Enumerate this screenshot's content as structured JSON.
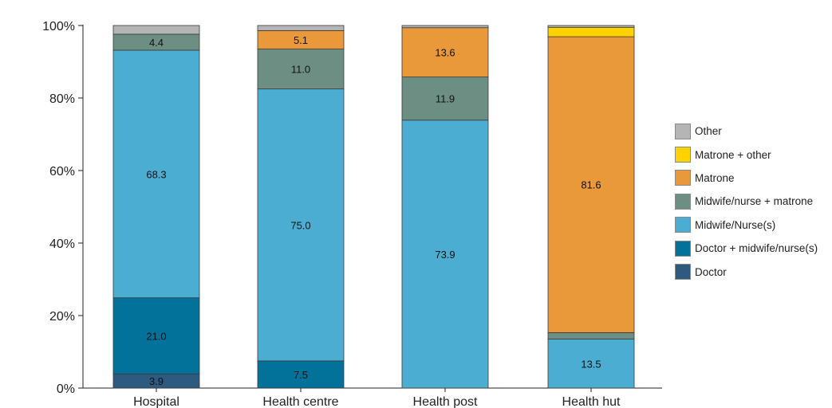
{
  "chart_data": {
    "type": "bar",
    "stacked": true,
    "categories": [
      "Hospital",
      "Health centre",
      "Health post",
      "Health hut"
    ],
    "yticks": [
      "0%",
      "20%",
      "40%",
      "60%",
      "80%",
      "100%"
    ],
    "ylim": [
      0,
      100
    ],
    "grid": false,
    "legend_position": "right",
    "series": [
      {
        "name": "Doctor",
        "color": "#2f5a80",
        "values": [
          3.9,
          0,
          0,
          0
        ],
        "labels": [
          "3.9",
          "",
          "",
          ""
        ]
      },
      {
        "name": "Doctor + midwife/nurse(s)",
        "color": "#03729b",
        "values": [
          21.0,
          7.5,
          0,
          0
        ],
        "labels": [
          "21.0",
          "7.5",
          "",
          ""
        ]
      },
      {
        "name": "Midwife/Nurse(s)",
        "color": "#4badd2",
        "values": [
          68.3,
          75.0,
          73.9,
          13.5
        ],
        "labels": [
          "68.3",
          "75.0",
          "73.9",
          "13.5"
        ]
      },
      {
        "name": "Midwife/nurse + matrone",
        "color": "#6d8f83",
        "values": [
          4.4,
          11.0,
          11.9,
          1.8
        ],
        "labels": [
          "4.4",
          "11.0",
          "11.9",
          ""
        ]
      },
      {
        "name": "Matrone",
        "color": "#e9983a",
        "values": [
          0,
          5.1,
          13.6,
          81.6
        ],
        "labels": [
          "",
          "5.1",
          "13.6",
          "81.6"
        ]
      },
      {
        "name": "Matrone + other",
        "color": "#ffd200",
        "values": [
          0,
          0,
          0,
          2.6
        ],
        "labels": [
          "",
          "",
          "",
          ""
        ]
      },
      {
        "name": "Other",
        "color": "#b5b5b5",
        "values": [
          2.4,
          1.4,
          0.6,
          0.5
        ],
        "labels": [
          "",
          "",
          "",
          ""
        ]
      }
    ],
    "legend_order": [
      "Other",
      "Matrone + other",
      "Matrone",
      "Midwife/nurse + matrone",
      "Midwife/Nurse(s)",
      "Doctor + midwife/nurse(s)",
      "Doctor"
    ]
  }
}
